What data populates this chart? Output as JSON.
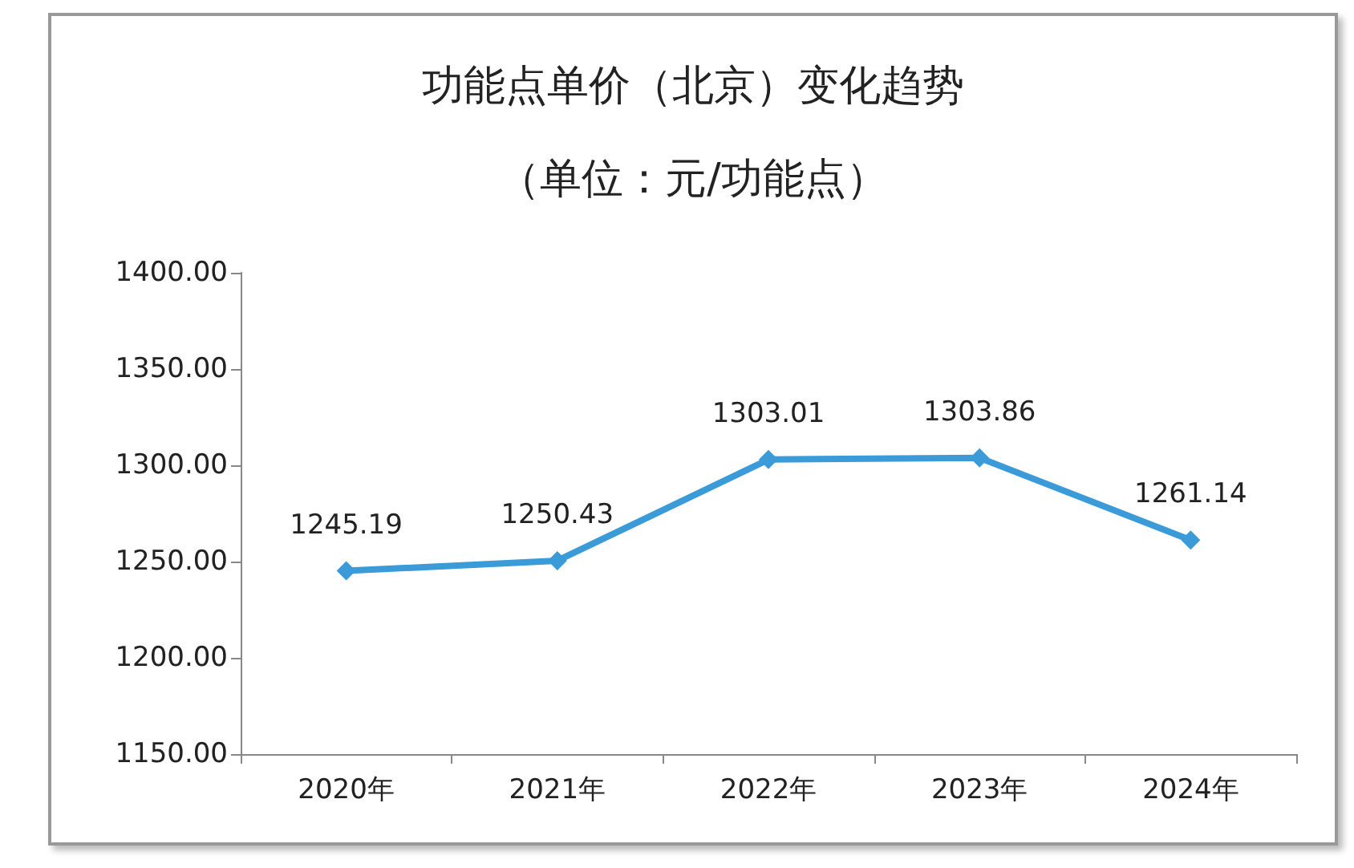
{
  "chart_data": {
    "type": "line",
    "title": "功能点单价（北京）变化趋势",
    "subtitle": "（单位：元/功能点）",
    "categories": [
      "2020年",
      "2021年",
      "2022年",
      "2023年",
      "2024年"
    ],
    "series": [
      {
        "color": "#3b9bd8",
        "values": [
          1245.19,
          1250.43,
          1303.01,
          1303.86,
          1261.14
        ]
      }
    ],
    "ylim": [
      1150,
      1400
    ],
    "yticks": [
      {
        "value": 1150,
        "label": "1150.00"
      },
      {
        "value": 1200,
        "label": "1200.00"
      },
      {
        "value": 1250,
        "label": "1250.00"
      },
      {
        "value": 1300,
        "label": "1300.00"
      },
      {
        "value": 1350,
        "label": "1350.00"
      },
      {
        "value": 1400,
        "label": "1400.00"
      }
    ],
    "data_labels": true,
    "grid": false,
    "marker": "diamond",
    "line_style": "solid"
  }
}
